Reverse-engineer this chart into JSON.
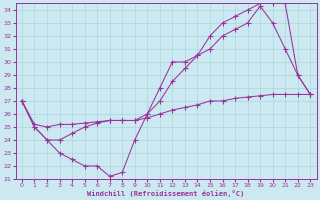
{
  "title": "",
  "xlabel": "Windchill (Refroidissement éolien,°C)",
  "ylabel": "",
  "xlim": [
    -0.5,
    23.5
  ],
  "ylim": [
    21,
    34.5
  ],
  "xticks": [
    0,
    1,
    2,
    3,
    4,
    5,
    6,
    7,
    8,
    9,
    10,
    11,
    12,
    13,
    14,
    15,
    16,
    17,
    18,
    19,
    20,
    21,
    22,
    23
  ],
  "yticks": [
    21,
    22,
    23,
    24,
    25,
    26,
    27,
    28,
    29,
    30,
    31,
    32,
    33,
    34
  ],
  "bg_color": "#cce8f0",
  "grid_color": "#aad4de",
  "line_color": "#993399",
  "line1_x": [
    0,
    1,
    2,
    3,
    4,
    5,
    6,
    7,
    8,
    9,
    10,
    11,
    12,
    13,
    14,
    15,
    16,
    17,
    18,
    19,
    20,
    21,
    22,
    23
  ],
  "line1_y": [
    27,
    25,
    24,
    23,
    22.5,
    22,
    22,
    21.2,
    21.5,
    24,
    26,
    28,
    30,
    30,
    30.5,
    31,
    32,
    32.5,
    33,
    34.3,
    33,
    31,
    29,
    27.5
  ],
  "line2_x": [
    0,
    1,
    2,
    3,
    4,
    5,
    6,
    7,
    8,
    9,
    10,
    11,
    12,
    13,
    14,
    15,
    16,
    17,
    18,
    19,
    20,
    21,
    22,
    23
  ],
  "line2_y": [
    27,
    25,
    24,
    24,
    24.5,
    25,
    25.3,
    25.5,
    25.5,
    25.5,
    26,
    27,
    28.5,
    29.5,
    30.5,
    32,
    33,
    33.5,
    34,
    34.5,
    34.5,
    34.5,
    29,
    27.5
  ],
  "line3_x": [
    0,
    1,
    2,
    3,
    4,
    5,
    6,
    7,
    8,
    9,
    10,
    11,
    12,
    13,
    14,
    15,
    16,
    17,
    18,
    19,
    20,
    21,
    22,
    23
  ],
  "line3_y": [
    27,
    25.2,
    25,
    25.2,
    25.2,
    25.3,
    25.4,
    25.5,
    25.5,
    25.5,
    25.7,
    26,
    26.3,
    26.5,
    26.7,
    27,
    27,
    27.2,
    27.3,
    27.4,
    27.5,
    27.5,
    27.5,
    27.5
  ]
}
